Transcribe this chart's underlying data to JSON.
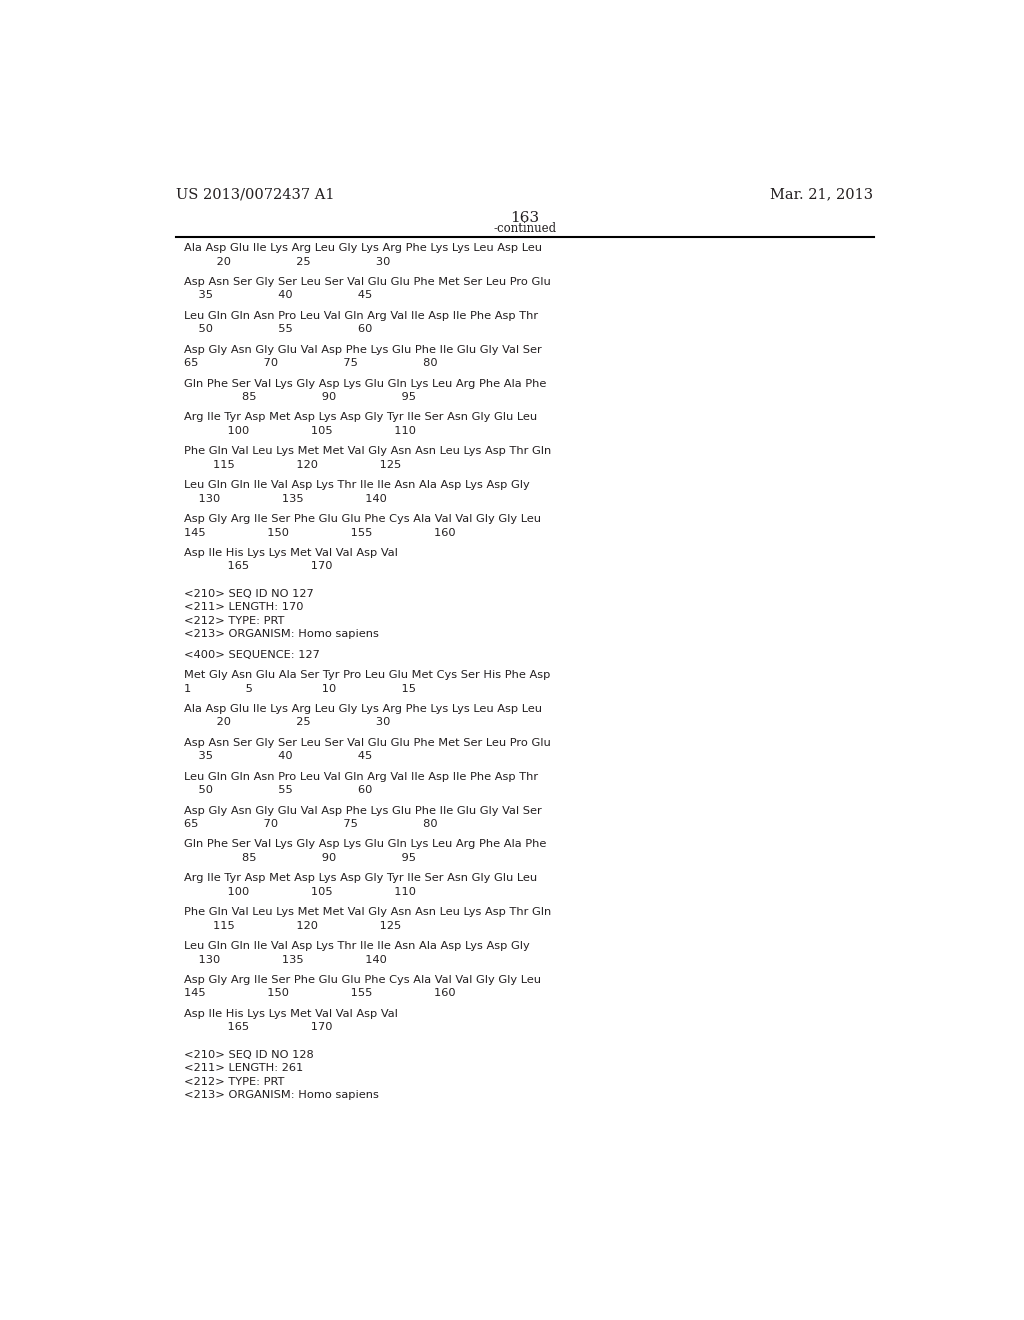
{
  "patent_number": "US 2013/0072437 A1",
  "date": "Mar. 21, 2013",
  "page_number": "163",
  "continued_label": "-continued",
  "background_color": "#ffffff",
  "text_color": "#231f20",
  "lines": [
    {
      "text": "Ala Asp Glu Ile Lys Arg Leu Gly Lys Arg Phe Lys Lys Leu Asp Leu",
      "type": "seq"
    },
    {
      "text": "         20                  25                  30",
      "type": "num"
    },
    {
      "text": "",
      "type": "blank"
    },
    {
      "text": "Asp Asn Ser Gly Ser Leu Ser Val Glu Glu Phe Met Ser Leu Pro Glu",
      "type": "seq"
    },
    {
      "text": "    35                  40                  45",
      "type": "num"
    },
    {
      "text": "",
      "type": "blank"
    },
    {
      "text": "Leu Gln Gln Asn Pro Leu Val Gln Arg Val Ile Asp Ile Phe Asp Thr",
      "type": "seq"
    },
    {
      "text": "    50                  55                  60",
      "type": "num"
    },
    {
      "text": "",
      "type": "blank"
    },
    {
      "text": "Asp Gly Asn Gly Glu Val Asp Phe Lys Glu Phe Ile Glu Gly Val Ser",
      "type": "seq"
    },
    {
      "text": "65                  70                  75                  80",
      "type": "num"
    },
    {
      "text": "",
      "type": "blank"
    },
    {
      "text": "Gln Phe Ser Val Lys Gly Asp Lys Glu Gln Lys Leu Arg Phe Ala Phe",
      "type": "seq"
    },
    {
      "text": "                85                  90                  95",
      "type": "num"
    },
    {
      "text": "",
      "type": "blank"
    },
    {
      "text": "Arg Ile Tyr Asp Met Asp Lys Asp Gly Tyr Ile Ser Asn Gly Glu Leu",
      "type": "seq"
    },
    {
      "text": "            100                 105                 110",
      "type": "num"
    },
    {
      "text": "",
      "type": "blank"
    },
    {
      "text": "Phe Gln Val Leu Lys Met Met Val Gly Asn Asn Leu Lys Asp Thr Gln",
      "type": "seq"
    },
    {
      "text": "        115                 120                 125",
      "type": "num"
    },
    {
      "text": "",
      "type": "blank"
    },
    {
      "text": "Leu Gln Gln Ile Val Asp Lys Thr Ile Ile Asn Ala Asp Lys Asp Gly",
      "type": "seq"
    },
    {
      "text": "    130                 135                 140",
      "type": "num"
    },
    {
      "text": "",
      "type": "blank"
    },
    {
      "text": "Asp Gly Arg Ile Ser Phe Glu Glu Phe Cys Ala Val Val Gly Gly Leu",
      "type": "seq"
    },
    {
      "text": "145                 150                 155                 160",
      "type": "num"
    },
    {
      "text": "",
      "type": "blank"
    },
    {
      "text": "Asp Ile His Lys Lys Met Val Val Asp Val",
      "type": "seq"
    },
    {
      "text": "            165                 170",
      "type": "num"
    },
    {
      "text": "",
      "type": "blank"
    },
    {
      "text": "",
      "type": "blank"
    },
    {
      "text": "<210> SEQ ID NO 127",
      "type": "meta"
    },
    {
      "text": "<211> LENGTH: 170",
      "type": "meta"
    },
    {
      "text": "<212> TYPE: PRT",
      "type": "meta"
    },
    {
      "text": "<213> ORGANISM: Homo sapiens",
      "type": "meta"
    },
    {
      "text": "",
      "type": "blank"
    },
    {
      "text": "<400> SEQUENCE: 127",
      "type": "meta"
    },
    {
      "text": "",
      "type": "blank"
    },
    {
      "text": "Met Gly Asn Glu Ala Ser Tyr Pro Leu Glu Met Cys Ser His Phe Asp",
      "type": "seq"
    },
    {
      "text": "1               5                   10                  15",
      "type": "num"
    },
    {
      "text": "",
      "type": "blank"
    },
    {
      "text": "Ala Asp Glu Ile Lys Arg Leu Gly Lys Arg Phe Lys Lys Leu Asp Leu",
      "type": "seq"
    },
    {
      "text": "         20                  25                  30",
      "type": "num"
    },
    {
      "text": "",
      "type": "blank"
    },
    {
      "text": "Asp Asn Ser Gly Ser Leu Ser Val Glu Glu Phe Met Ser Leu Pro Glu",
      "type": "seq"
    },
    {
      "text": "    35                  40                  45",
      "type": "num"
    },
    {
      "text": "",
      "type": "blank"
    },
    {
      "text": "Leu Gln Gln Asn Pro Leu Val Gln Arg Val Ile Asp Ile Phe Asp Thr",
      "type": "seq"
    },
    {
      "text": "    50                  55                  60",
      "type": "num"
    },
    {
      "text": "",
      "type": "blank"
    },
    {
      "text": "Asp Gly Asn Gly Glu Val Asp Phe Lys Glu Phe Ile Glu Gly Val Ser",
      "type": "seq"
    },
    {
      "text": "65                  70                  75                  80",
      "type": "num"
    },
    {
      "text": "",
      "type": "blank"
    },
    {
      "text": "Gln Phe Ser Val Lys Gly Asp Lys Glu Gln Lys Leu Arg Phe Ala Phe",
      "type": "seq"
    },
    {
      "text": "                85                  90                  95",
      "type": "num"
    },
    {
      "text": "",
      "type": "blank"
    },
    {
      "text": "Arg Ile Tyr Asp Met Asp Lys Asp Gly Tyr Ile Ser Asn Gly Glu Leu",
      "type": "seq"
    },
    {
      "text": "            100                 105                 110",
      "type": "num"
    },
    {
      "text": "",
      "type": "blank"
    },
    {
      "text": "Phe Gln Val Leu Lys Met Met Val Gly Asn Asn Leu Lys Asp Thr Gln",
      "type": "seq"
    },
    {
      "text": "        115                 120                 125",
      "type": "num"
    },
    {
      "text": "",
      "type": "blank"
    },
    {
      "text": "Leu Gln Gln Ile Val Asp Lys Thr Ile Ile Asn Ala Asp Lys Asp Gly",
      "type": "seq"
    },
    {
      "text": "    130                 135                 140",
      "type": "num"
    },
    {
      "text": "",
      "type": "blank"
    },
    {
      "text": "Asp Gly Arg Ile Ser Phe Glu Glu Phe Cys Ala Val Val Gly Gly Leu",
      "type": "seq"
    },
    {
      "text": "145                 150                 155                 160",
      "type": "num"
    },
    {
      "text": "",
      "type": "blank"
    },
    {
      "text": "Asp Ile His Lys Lys Met Val Val Asp Val",
      "type": "seq"
    },
    {
      "text": "            165                 170",
      "type": "num"
    },
    {
      "text": "",
      "type": "blank"
    },
    {
      "text": "",
      "type": "blank"
    },
    {
      "text": "<210> SEQ ID NO 128",
      "type": "meta"
    },
    {
      "text": "<211> LENGTH: 261",
      "type": "meta"
    },
    {
      "text": "<212> TYPE: PRT",
      "type": "meta"
    },
    {
      "text": "<213> ORGANISM: Homo sapiens",
      "type": "meta"
    }
  ]
}
